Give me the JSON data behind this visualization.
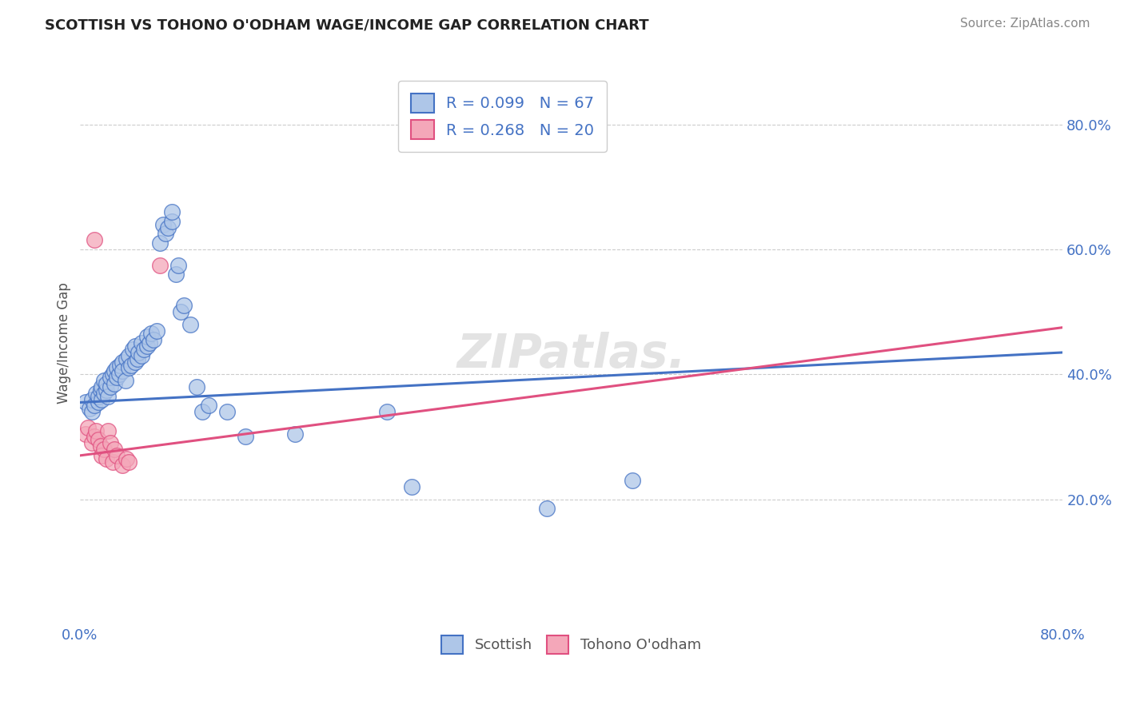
{
  "title": "SCOTTISH VS TOHONO O'ODHAM WAGE/INCOME GAP CORRELATION CHART",
  "source": "Source: ZipAtlas.com",
  "ylabel": "Wage/Income Gap",
  "xlim": [
    0.0,
    0.8
  ],
  "ylim": [
    0.0,
    0.9
  ],
  "yticks": [
    0.2,
    0.4,
    0.6,
    0.8
  ],
  "ytick_labels": [
    "20.0%",
    "40.0%",
    "60.0%",
    "80.0%"
  ],
  "xtick_left": "0.0%",
  "xtick_right": "80.0%",
  "legend_r_scottish": "0.099",
  "legend_n_scottish": "67",
  "legend_r_tohono": "0.268",
  "legend_n_tohono": "20",
  "scottish_color": "#aec6e8",
  "tohono_color": "#f4a7b9",
  "line_scottish_color": "#4472c4",
  "line_tohono_color": "#e05080",
  "watermark": "ZIPatlas.",
  "background_color": "#ffffff",
  "scottish_points": [
    [
      0.005,
      0.355
    ],
    [
      0.008,
      0.345
    ],
    [
      0.01,
      0.34
    ],
    [
      0.01,
      0.36
    ],
    [
      0.012,
      0.35
    ],
    [
      0.013,
      0.37
    ],
    [
      0.015,
      0.355
    ],
    [
      0.015,
      0.365
    ],
    [
      0.017,
      0.375
    ],
    [
      0.018,
      0.36
    ],
    [
      0.018,
      0.38
    ],
    [
      0.02,
      0.37
    ],
    [
      0.02,
      0.39
    ],
    [
      0.022,
      0.375
    ],
    [
      0.022,
      0.385
    ],
    [
      0.023,
      0.365
    ],
    [
      0.025,
      0.38
    ],
    [
      0.025,
      0.395
    ],
    [
      0.027,
      0.4
    ],
    [
      0.028,
      0.385
    ],
    [
      0.028,
      0.405
    ],
    [
      0.03,
      0.395
    ],
    [
      0.03,
      0.41
    ],
    [
      0.032,
      0.4
    ],
    [
      0.033,
      0.415
    ],
    [
      0.035,
      0.42
    ],
    [
      0.035,
      0.405
    ],
    [
      0.037,
      0.39
    ],
    [
      0.038,
      0.425
    ],
    [
      0.04,
      0.41
    ],
    [
      0.04,
      0.43
    ],
    [
      0.042,
      0.415
    ],
    [
      0.043,
      0.44
    ],
    [
      0.045,
      0.42
    ],
    [
      0.045,
      0.445
    ],
    [
      0.047,
      0.425
    ],
    [
      0.048,
      0.435
    ],
    [
      0.05,
      0.43
    ],
    [
      0.05,
      0.45
    ],
    [
      0.052,
      0.44
    ],
    [
      0.055,
      0.445
    ],
    [
      0.055,
      0.46
    ],
    [
      0.057,
      0.45
    ],
    [
      0.058,
      0.465
    ],
    [
      0.06,
      0.455
    ],
    [
      0.063,
      0.47
    ],
    [
      0.065,
      0.61
    ],
    [
      0.068,
      0.64
    ],
    [
      0.07,
      0.625
    ],
    [
      0.072,
      0.635
    ],
    [
      0.075,
      0.645
    ],
    [
      0.075,
      0.66
    ],
    [
      0.078,
      0.56
    ],
    [
      0.08,
      0.575
    ],
    [
      0.082,
      0.5
    ],
    [
      0.085,
      0.51
    ],
    [
      0.09,
      0.48
    ],
    [
      0.095,
      0.38
    ],
    [
      0.1,
      0.34
    ],
    [
      0.105,
      0.35
    ],
    [
      0.12,
      0.34
    ],
    [
      0.135,
      0.3
    ],
    [
      0.175,
      0.305
    ],
    [
      0.25,
      0.34
    ],
    [
      0.27,
      0.22
    ],
    [
      0.38,
      0.185
    ],
    [
      0.45,
      0.23
    ]
  ],
  "tohono_points": [
    [
      0.005,
      0.305
    ],
    [
      0.007,
      0.315
    ],
    [
      0.01,
      0.29
    ],
    [
      0.012,
      0.3
    ],
    [
      0.013,
      0.31
    ],
    [
      0.015,
      0.295
    ],
    [
      0.017,
      0.285
    ],
    [
      0.018,
      0.27
    ],
    [
      0.02,
      0.28
    ],
    [
      0.022,
      0.265
    ],
    [
      0.023,
      0.31
    ],
    [
      0.025,
      0.29
    ],
    [
      0.027,
      0.26
    ],
    [
      0.028,
      0.28
    ],
    [
      0.03,
      0.27
    ],
    [
      0.035,
      0.255
    ],
    [
      0.038,
      0.265
    ],
    [
      0.04,
      0.26
    ],
    [
      0.012,
      0.615
    ],
    [
      0.065,
      0.575
    ]
  ],
  "grid_color": "#cccccc",
  "grid_linestyle": "--",
  "title_fontsize": 13,
  "axis_label_color": "#555555",
  "tick_label_color": "#4472c4",
  "legend_text_color": "#4472c4"
}
